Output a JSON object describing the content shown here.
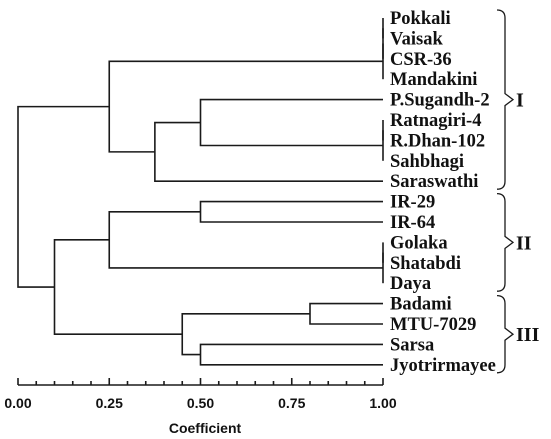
{
  "leaves": [
    "Pokkali",
    "Vaisak",
    "CSR-36",
    "Mandakini",
    "P.Sugandh-2",
    "Ratnagiri-4",
    "R.Dhan-102",
    "Sahbhagi",
    "Saraswathi",
    "IR-29",
    "IR-64",
    "Golaka",
    "Shatabdi",
    "Daya",
    "Badami",
    "MTU-7029",
    "Sarsa",
    "Jyotrirmayee"
  ],
  "merges": [
    {
      "a": "L0",
      "b": "L1",
      "h": 1.0
    },
    {
      "a": "N0",
      "b": "L2",
      "h": 1.0
    },
    {
      "a": "N1",
      "b": "L3",
      "h": 1.0
    },
    {
      "a": "L5",
      "b": "L6",
      "h": 1.0
    },
    {
      "a": "N3",
      "b": "L7",
      "h": 1.0
    },
    {
      "a": "L4",
      "b": "N4",
      "h": 0.5
    },
    {
      "a": "N5",
      "b": "L8",
      "h": 0.375
    },
    {
      "a": "N2",
      "b": "N6",
      "h": 0.25
    },
    {
      "a": "L9",
      "b": "L10",
      "h": 0.5
    },
    {
      "a": "L11",
      "b": "L12",
      "h": 1.0
    },
    {
      "a": "N9",
      "b": "L13",
      "h": 1.0
    },
    {
      "a": "N8",
      "b": "N10",
      "h": 0.25
    },
    {
      "a": "L14",
      "b": "L15",
      "h": 0.8
    },
    {
      "a": "L16",
      "b": "L17",
      "h": 0.5
    },
    {
      "a": "N12",
      "b": "N13",
      "h": 0.45
    },
    {
      "a": "N11",
      "b": "N14",
      "h": 0.1
    },
    {
      "a": "N7",
      "b": "N15",
      "h": 0.0
    }
  ],
  "clusters": [
    {
      "label": "I",
      "first": 0,
      "last": 8
    },
    {
      "label": "II",
      "first": 9,
      "last": 13
    },
    {
      "label": "III",
      "first": 14,
      "last": 17
    }
  ],
  "axis": {
    "min": 0.0,
    "max": 1.0,
    "ticks": [
      "0.00",
      "0.25",
      "0.50",
      "0.75",
      "1.00"
    ],
    "title": "Coefficient"
  }
}
